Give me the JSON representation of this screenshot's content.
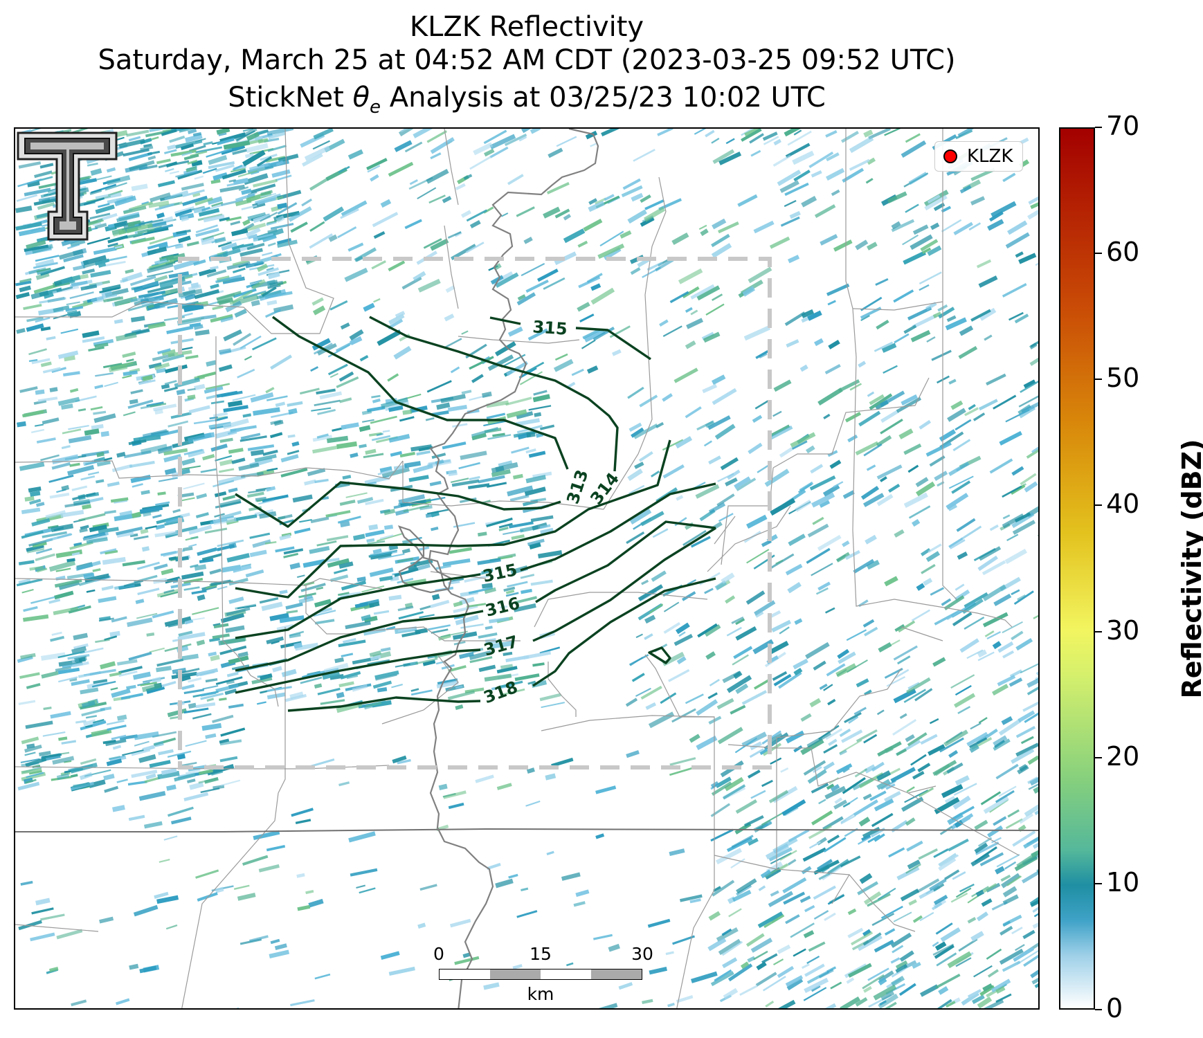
{
  "title": {
    "line1": "KLZK Reflectivity",
    "line2": "Saturday, March 25 at 04:52 AM CDT (2023-03-25 09:52 UTC)",
    "line3_prefix": "StickNet ",
    "line3_symbol": "θ",
    "line3_subscript": "e",
    "line3_suffix": " Analysis at 03/25/23 10:02 UTC"
  },
  "legend": {
    "marker_label": "KLZK",
    "marker_color": "#ff0000"
  },
  "scale_bar": {
    "labels": [
      "0",
      "15",
      "30"
    ],
    "unit": "km"
  },
  "colorbar": {
    "label": "Reflectivity (dBZ)",
    "ticks": [
      "0",
      "10",
      "20",
      "30",
      "40",
      "50",
      "60",
      "70"
    ],
    "min": 0,
    "max": 70
  },
  "contours": {
    "color": "#0a4220",
    "labels": [
      {
        "text": "313"
      },
      {
        "text": "314"
      },
      {
        "text": "315"
      },
      {
        "text": "315"
      },
      {
        "text": "316"
      },
      {
        "text": "317"
      },
      {
        "text": "318"
      }
    ]
  },
  "colors": {
    "contour": "#0a4220",
    "analysis_box": "#c8c8c8",
    "county_lines": "#9a9a9a",
    "river": "#808080",
    "state_line": "#707070"
  },
  "logo": {
    "name": "texas-tech-double-t-logo"
  }
}
